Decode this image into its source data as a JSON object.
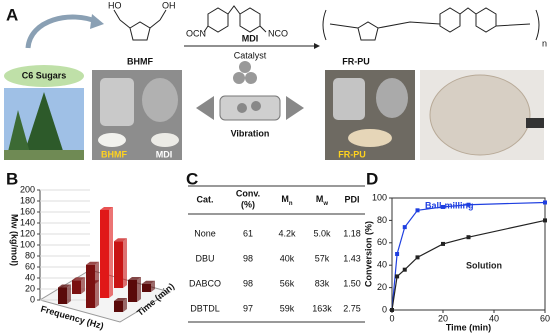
{
  "panel_a": {
    "label": "A",
    "sugar_label": "C6 Sugars",
    "monomer": "BHMF",
    "reagent": "MDI",
    "catalyst": "Catalyst",
    "product": "FR-PU",
    "process": "Vibration",
    "photo_labels": [
      "BHMF",
      "MDI",
      "FR-PU"
    ],
    "chem_text": [
      "HO",
      "OH",
      "OCN",
      "NCO",
      "n"
    ]
  },
  "panel_b": {
    "label": "B",
    "type": "bar3d",
    "ylabel": "Mw (kg/mol)",
    "xlabel": "Frequency (Hz)",
    "zlabel": "Time (min)",
    "ylim": [
      0,
      200
    ],
    "yticks": [
      0,
      20,
      40,
      60,
      80,
      100,
      120,
      140,
      160,
      180,
      200
    ],
    "values": [
      30,
      45,
      20,
      25,
      160,
      40,
      35,
      85,
      15
    ],
    "colors": [
      "#5a0a0a",
      "#7a1010",
      "#5a0a0a",
      "#7a1010",
      "#e01818",
      "#5a0a0a",
      "#7a1010",
      "#c81414",
      "#5a0a0a"
    ]
  },
  "panel_c": {
    "label": "C",
    "header": [
      "Cat.",
      [
        "Conv.",
        "(%)"
      ],
      {
        "text": "M",
        "sub": "n"
      },
      {
        "text": "M",
        "sub": "w"
      },
      "PDI"
    ],
    "rows": [
      [
        "None",
        "61",
        "4.2k",
        "5.0k",
        "1.18"
      ],
      [
        "DBU",
        "98",
        "40k",
        "57k",
        "1.43"
      ],
      [
        "DABCO",
        "98",
        "56k",
        "83k",
        "1.50"
      ],
      [
        "DBTDL",
        "97",
        "59k",
        "163k",
        "2.75"
      ]
    ]
  },
  "panel_d": {
    "label": "D",
    "type": "line",
    "xlabel": "Time (min)",
    "ylabel": "Conversion (%)",
    "xlim": [
      0,
      60
    ],
    "xticks": [
      0,
      20,
      40,
      60
    ],
    "ylim": [
      0,
      100
    ],
    "yticks": [
      0,
      20,
      40,
      60,
      80,
      100
    ],
    "series": [
      {
        "name": "Ball-milling",
        "color": "#1f3fe0",
        "x": [
          0,
          2,
          5,
          10,
          20,
          30,
          60
        ],
        "values": [
          0,
          50,
          74,
          89,
          92,
          94,
          96
        ]
      },
      {
        "name": "Solution",
        "color": "#222222",
        "x": [
          0,
          2,
          5,
          10,
          20,
          30,
          60
        ],
        "values": [
          0,
          30,
          36,
          47,
          59,
          65,
          80
        ]
      }
    ]
  }
}
